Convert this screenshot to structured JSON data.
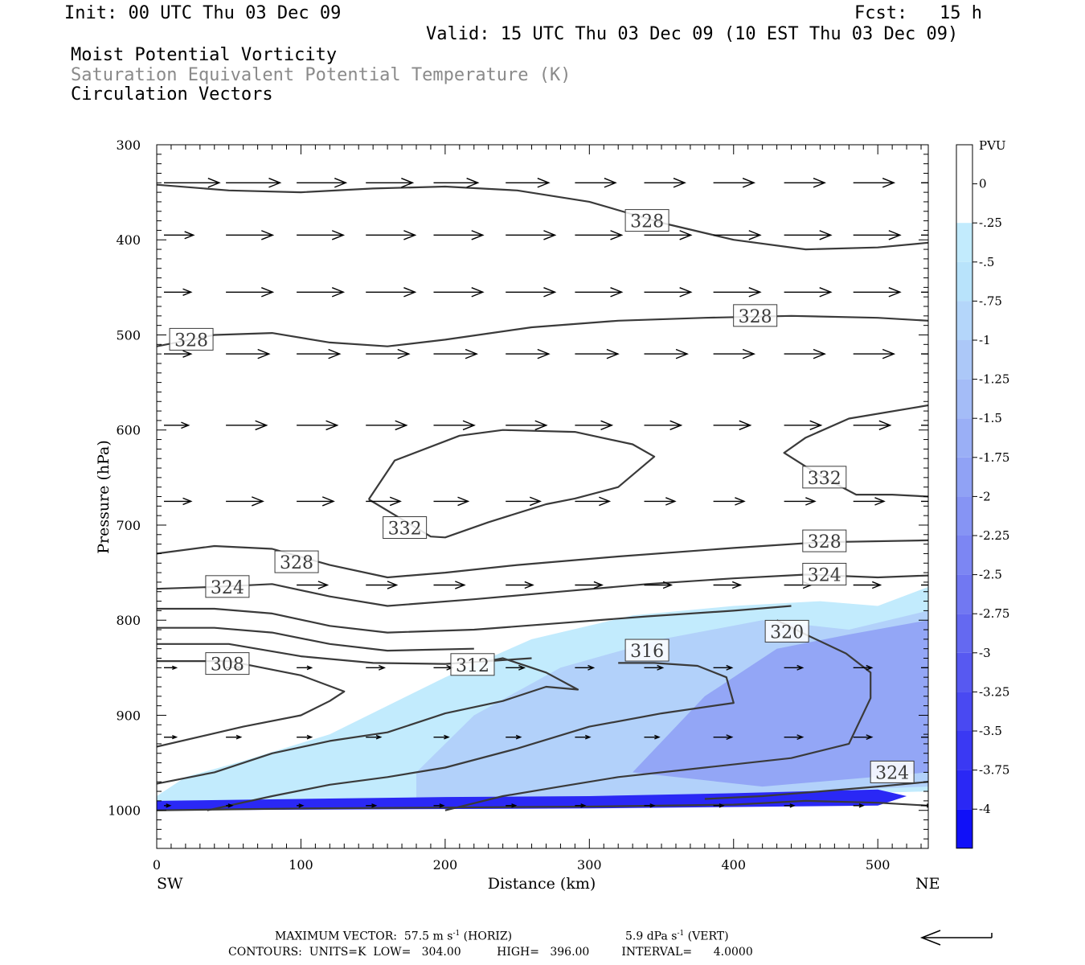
{
  "header": {
    "init": "Init: 00 UTC Thu 03 Dec 09",
    "fcst": "Fcst:   15 h",
    "valid": "Valid: 15 UTC Thu 03 Dec 09 (10 EST Thu 03 Dec 09)",
    "field1": "Moist Potential Vorticity",
    "field2": "Saturation Equivalent Potential Temperature (K)",
    "field3": "Circulation Vectors"
  },
  "chart_data": {
    "type": "heatmap",
    "xlabel": "Distance (km)",
    "ylabel": "Pressure (hPa)",
    "x_ticks": [
      0,
      100,
      200,
      300,
      400,
      500
    ],
    "y_ticks": [
      300,
      400,
      500,
      600,
      700,
      800,
      900,
      1000
    ],
    "xlim": [
      0,
      535
    ],
    "ylim": [
      1040,
      300
    ],
    "left_end_label": "SW",
    "right_end_label": "NE",
    "colorbar": {
      "unit": "PVU",
      "labels": [
        "0",
        "-.25",
        "-.5",
        "-.75",
        "-1",
        "-1.25",
        "-1.5",
        "-1.75",
        "-2",
        "-2.25",
        "-2.5",
        "-2.75",
        "-3",
        "-3.25",
        "-3.5",
        "-3.75",
        "-4"
      ],
      "colors": [
        "#ffffff",
        "#ffffff",
        "#c2ebfd",
        "#b8e3fb",
        "#b4d6fa",
        "#acc8f8",
        "#a4bcf7",
        "#9aaff6",
        "#90a2f5",
        "#8694f4",
        "#7c86f3",
        "#7178f2",
        "#6469f1",
        "#5759f1",
        "#4949f2",
        "#3a39f3",
        "#2a28f5",
        "#1010f8"
      ]
    },
    "pv_region": {
      "light": [
        [
          0,
          985
        ],
        [
          20,
          965
        ],
        [
          60,
          948
        ],
        [
          120,
          920
        ],
        [
          200,
          860
        ],
        [
          260,
          820
        ],
        [
          330,
          795
        ],
        [
          400,
          785
        ],
        [
          460,
          780
        ],
        [
          500,
          785
        ],
        [
          535,
          765
        ],
        [
          535,
          980
        ],
        [
          420,
          985
        ],
        [
          300,
          995
        ],
        [
          150,
          995
        ],
        [
          0,
          995
        ]
      ],
      "mid": [
        [
          180,
          960
        ],
        [
          220,
          900
        ],
        [
          280,
          850
        ],
        [
          350,
          820
        ],
        [
          420,
          800
        ],
        [
          480,
          810
        ],
        [
          535,
          790
        ],
        [
          535,
          975
        ],
        [
          450,
          980
        ],
        [
          300,
          990
        ],
        [
          180,
          990
        ]
      ],
      "dark": [
        [
          330,
          960
        ],
        [
          380,
          880
        ],
        [
          430,
          830
        ],
        [
          480,
          815
        ],
        [
          535,
          800
        ],
        [
          535,
          960
        ],
        [
          420,
          975
        ]
      ],
      "surface": [
        [
          0,
          990
        ],
        [
          100,
          988
        ],
        [
          200,
          986
        ],
        [
          300,
          985
        ],
        [
          400,
          982
        ],
        [
          500,
          978
        ],
        [
          520,
          985
        ],
        [
          500,
          995
        ],
        [
          300,
          998
        ],
        [
          0,
          1000
        ]
      ]
    },
    "contours": [
      {
        "value": 328,
        "points": [
          [
            0,
            342
          ],
          [
            50,
            348
          ],
          [
            100,
            350
          ],
          [
            150,
            346
          ],
          [
            200,
            344
          ],
          [
            250,
            348
          ],
          [
            300,
            360
          ],
          [
            350,
            382
          ],
          [
            400,
            400
          ],
          [
            450,
            410
          ],
          [
            500,
            408
          ],
          [
            535,
            403
          ]
        ]
      },
      {
        "value": 328,
        "points": [
          [
            0,
            512
          ],
          [
            40,
            500
          ],
          [
            80,
            498
          ],
          [
            120,
            508
          ],
          [
            160,
            512
          ],
          [
            200,
            505
          ],
          [
            260,
            492
          ],
          [
            320,
            485
          ],
          [
            380,
            482
          ],
          [
            440,
            480
          ],
          [
            500,
            482
          ],
          [
            535,
            485
          ]
        ]
      },
      {
        "value": 332,
        "points": [
          [
            147,
            673
          ],
          [
            165,
            632
          ],
          [
            210,
            606
          ],
          [
            240,
            600
          ],
          [
            290,
            602
          ],
          [
            330,
            615
          ],
          [
            345,
            628
          ],
          [
            320,
            660
          ],
          [
            290,
            672
          ],
          [
            270,
            678
          ],
          [
            230,
            697
          ],
          [
            200,
            713
          ],
          [
            190,
            712
          ],
          [
            147,
            673
          ]
        ]
      },
      {
        "value": 332,
        "points": [
          [
            535,
            574
          ],
          [
            480,
            588
          ],
          [
            450,
            608
          ],
          [
            435,
            624
          ],
          [
            460,
            648
          ],
          [
            485,
            668
          ],
          [
            510,
            668
          ],
          [
            535,
            670
          ]
        ]
      },
      {
        "value": 328,
        "points": [
          [
            0,
            730
          ],
          [
            40,
            722
          ],
          [
            80,
            725
          ],
          [
            120,
            742
          ],
          [
            160,
            755
          ],
          [
            200,
            750
          ],
          [
            250,
            742
          ],
          [
            320,
            733
          ],
          [
            400,
            724
          ],
          [
            460,
            718
          ],
          [
            535,
            716
          ]
        ]
      },
      {
        "value": 324,
        "points": [
          [
            0,
            767
          ],
          [
            40,
            765
          ],
          [
            80,
            762
          ],
          [
            120,
            775
          ],
          [
            160,
            785
          ],
          [
            220,
            778
          ],
          [
            280,
            770
          ],
          [
            340,
            762
          ],
          [
            400,
            756
          ],
          [
            450,
            752
          ],
          [
            500,
            755
          ],
          [
            535,
            753
          ]
        ]
      },
      {
        "value": 320,
        "points": [
          [
            0,
            788
          ],
          [
            40,
            788
          ],
          [
            80,
            793
          ],
          [
            120,
            806
          ],
          [
            160,
            813
          ],
          [
            220,
            810
          ],
          [
            280,
            803
          ],
          [
            340,
            796
          ],
          [
            400,
            790
          ],
          [
            440,
            785
          ]
        ]
      },
      {
        "value": 316,
        "points": [
          [
            0,
            808
          ],
          [
            40,
            808
          ],
          [
            80,
            813
          ],
          [
            120,
            825
          ],
          [
            160,
            832
          ],
          [
            220,
            830
          ]
        ]
      },
      {
        "value": 312,
        "points": [
          [
            0,
            825
          ],
          [
            50,
            825
          ],
          [
            100,
            838
          ],
          [
            150,
            845
          ],
          [
            200,
            846
          ],
          [
            230,
            843
          ],
          [
            260,
            840
          ]
        ]
      },
      {
        "value": 308,
        "points": [
          [
            0,
            843
          ],
          [
            50,
            843
          ],
          [
            100,
            858
          ],
          [
            130,
            875
          ],
          [
            120,
            885
          ],
          [
            100,
            900
          ],
          [
            60,
            912
          ],
          [
            0,
            933
          ]
        ]
      },
      {
        "value": 312,
        "points": [
          [
            0,
            972
          ],
          [
            40,
            960
          ],
          [
            80,
            940
          ],
          [
            120,
            927
          ],
          [
            160,
            918
          ],
          [
            200,
            898
          ],
          [
            240,
            885
          ],
          [
            270,
            870
          ],
          [
            292,
            873
          ],
          [
            270,
            855
          ],
          [
            240,
            840
          ],
          [
            230,
            843
          ]
        ]
      },
      {
        "value": 316,
        "points": [
          [
            35,
            1000
          ],
          [
            80,
            985
          ],
          [
            120,
            973
          ],
          [
            160,
            965
          ],
          [
            200,
            955
          ],
          [
            250,
            935
          ],
          [
            300,
            912
          ],
          [
            350,
            898
          ],
          [
            400,
            887
          ],
          [
            395,
            860
          ],
          [
            375,
            848
          ],
          [
            345,
            845
          ],
          [
            320,
            845
          ]
        ]
      },
      {
        "value": 320,
        "points": [
          [
            200,
            1000
          ],
          [
            240,
            985
          ],
          [
            280,
            975
          ],
          [
            320,
            965
          ],
          [
            380,
            955
          ],
          [
            440,
            945
          ],
          [
            480,
            930
          ],
          [
            495,
            882
          ],
          [
            495,
            855
          ],
          [
            478,
            835
          ],
          [
            450,
            815
          ],
          [
            430,
            800
          ]
        ]
      },
      {
        "value": 324,
        "points": [
          [
            380,
            988
          ],
          [
            420,
            985
          ],
          [
            460,
            980
          ],
          [
            500,
            975
          ],
          [
            535,
            970
          ]
        ]
      },
      {
        "value": 324,
        "points": [
          [
            0,
            1000
          ],
          [
            100,
            998
          ],
          [
            200,
            997
          ],
          [
            300,
            996
          ],
          [
            400,
            994
          ],
          [
            450,
            990
          ],
          [
            500,
            992
          ],
          [
            535,
            995
          ]
        ]
      }
    ],
    "contour_labels": [
      {
        "text": "328",
        "x": 340,
        "y": 380
      },
      {
        "text": "328",
        "x": 415,
        "y": 480
      },
      {
        "text": "328",
        "x": 24,
        "y": 505
      },
      {
        "text": "332",
        "x": 172,
        "y": 703
      },
      {
        "text": "332",
        "x": 463,
        "y": 650
      },
      {
        "text": "328",
        "x": 463,
        "y": 717
      },
      {
        "text": "328",
        "x": 97,
        "y": 739
      },
      {
        "text": "324",
        "x": 463,
        "y": 752
      },
      {
        "text": "324",
        "x": 49,
        "y": 765
      },
      {
        "text": "320",
        "x": 437,
        "y": 812
      },
      {
        "text": "316",
        "x": 340,
        "y": 832
      },
      {
        "text": "312",
        "x": 219,
        "y": 847
      },
      {
        "text": "308",
        "x": 49,
        "y": 846
      },
      {
        "text": "324",
        "x": 510,
        "y": 960
      }
    ],
    "vectors": {
      "x": [
        5,
        48,
        97,
        145,
        192,
        242,
        290,
        338,
        386,
        435,
        483,
        530
      ],
      "rows": [
        {
          "p": 340,
          "u": [
            45,
            44,
            40,
            38,
            36,
            35,
            33,
            33,
            33,
            33,
            33,
            33
          ]
        },
        {
          "p": 395,
          "u": [
            24,
            38,
            38,
            40,
            40,
            40,
            38,
            38,
            38,
            38,
            38,
            35
          ]
        },
        {
          "p": 455,
          "u": [
            22,
            38,
            38,
            40,
            40,
            40,
            38,
            38,
            38,
            38,
            38,
            33
          ]
        },
        {
          "p": 520,
          "u": [
            22,
            35,
            35,
            35,
            35,
            35,
            35,
            35,
            33,
            33,
            33,
            33
          ]
        },
        {
          "p": 595,
          "u": [
            20,
            33,
            33,
            33,
            33,
            33,
            30,
            30,
            30,
            30,
            30,
            30
          ]
        },
        {
          "p": 675,
          "u": [
            22,
            30,
            30,
            28,
            28,
            28,
            28,
            25,
            25,
            25,
            25,
            25
          ]
        },
        {
          "p": 763,
          "u": [
            0,
            0,
            25,
            25,
            25,
            22,
            22,
            22,
            22,
            22,
            22,
            22
          ]
        },
        {
          "p": 850,
          "u": [
            10,
            12,
            12,
            15,
            15,
            15,
            15,
            15,
            15,
            15,
            15,
            15
          ]
        },
        {
          "p": 923,
          "u": [
            10,
            12,
            12,
            12,
            12,
            12,
            12,
            12,
            15,
            15,
            15,
            15
          ]
        },
        {
          "p": 995,
          "u": [
            5,
            5,
            5,
            8,
            8,
            8,
            8,
            8,
            8,
            8,
            8,
            8
          ]
        }
      ],
      "umax": 57.5
    }
  },
  "footer": {
    "max_vector_label": "MAXIMUM VECTOR:",
    "horiz_value": "57.5 m s",
    "horiz_exp": "-1",
    "horiz_unit": " (HORIZ)",
    "vert_value": "5.9 dPa s",
    "vert_exp": "-1",
    "vert_unit": " (VERT)",
    "contours": "CONTOURS:  UNITS=K  LOW=   304.00          HIGH=   396.00         INTERVAL=      4.0000"
  }
}
